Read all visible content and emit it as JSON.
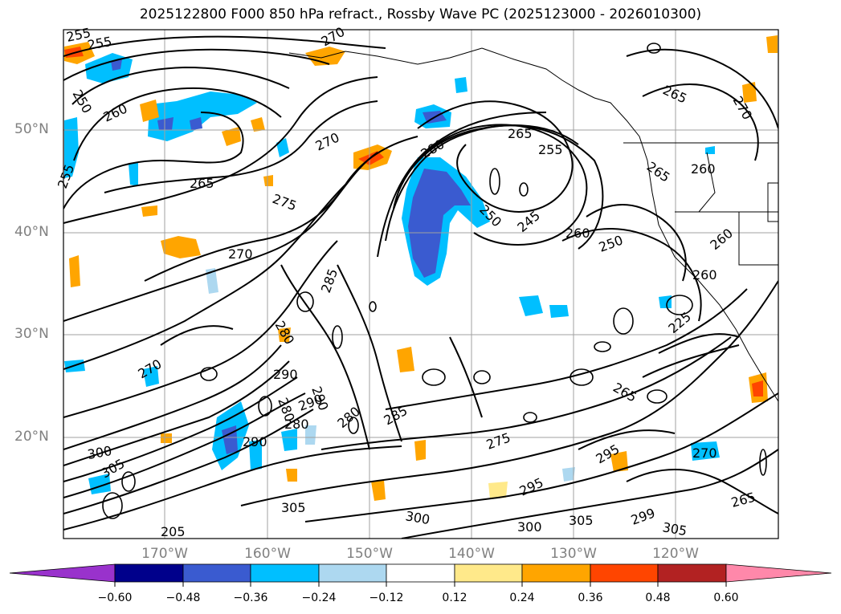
{
  "title": "2025122800 F000 850 hPa refract., Rossby Wave PC (2025123000 - 2026010300)",
  "lat_labels": [
    "50°N",
    "40°N",
    "30°N",
    "20°N"
  ],
  "lon_labels": [
    "170°W",
    "160°W",
    "150°W",
    "140°W",
    "130°W",
    "120°W"
  ],
  "contour_labels": [
    "255",
    "255",
    "250",
    "255",
    "260",
    "265",
    "270",
    "275",
    "270",
    "270",
    "280",
    "265",
    "255",
    "250",
    "245",
    "260",
    "250",
    "260",
    "260",
    "265",
    "260",
    "270",
    "265",
    "285",
    "280",
    "290",
    "280",
    "290",
    "290",
    "280",
    "280",
    "285",
    "275",
    "265",
    "270",
    "290",
    "300",
    "305",
    "305",
    "300",
    "300",
    "305",
    "295",
    "295",
    "270",
    "299",
    "305",
    "265",
    "205",
    "225"
  ],
  "colorbar": {
    "ticks": [
      "−0.60",
      "−0.48",
      "−0.36",
      "−0.24",
      "−0.12",
      "0.12",
      "0.24",
      "0.36",
      "0.48",
      "0.60"
    ],
    "colors": [
      "#9932cc",
      "#00008b",
      "#3a5bd0",
      "#00bfff",
      "#add8f0",
      "#ffffff",
      "#ffe98a",
      "#ffa500",
      "#ff4500",
      "#b22222",
      "#ff88aa"
    ]
  },
  "styles": {
    "positive_low": "#ffe98a",
    "positive_mid": "#ffa500",
    "positive_high": "#ff4500",
    "negative_low": "#add8f0",
    "negative_mid": "#00bfff",
    "negative_high": "#3a5bd0"
  }
}
